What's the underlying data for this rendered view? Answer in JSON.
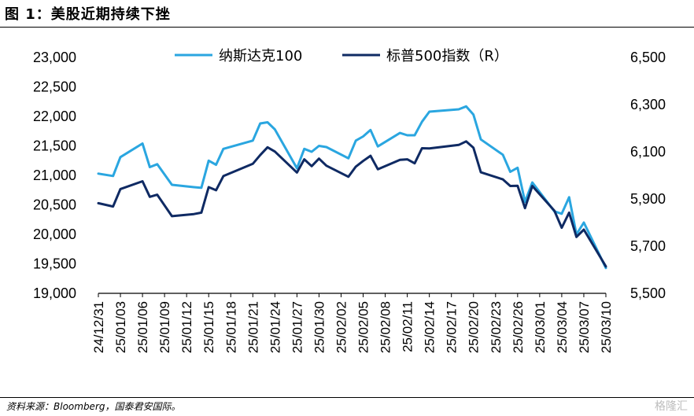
{
  "figure": {
    "title": "图 1：美股近期持续下挫",
    "source": "资料来源：Bloomberg，国泰君安国际。",
    "watermark": "格隆汇"
  },
  "chart_data": {
    "type": "line",
    "x_tick_labels": [
      "24/12/31",
      "25/01/03",
      "25/01/06",
      "25/01/09",
      "25/01/12",
      "25/01/15",
      "25/01/18",
      "25/01/21",
      "25/01/24",
      "25/01/27",
      "25/01/30",
      "25/02/02",
      "25/02/05",
      "25/02/08",
      "25/02/11",
      "25/02/14",
      "25/02/17",
      "25/02/20",
      "25/02/23",
      "25/02/26",
      "25/03/01",
      "25/03/04",
      "25/03/07",
      "25/03/10"
    ],
    "x_range": [
      "2024-12-31",
      "2025-03-10"
    ],
    "y_left": {
      "ticks": [
        "19,000",
        "19,500",
        "20,000",
        "20,500",
        "21,000",
        "21,500",
        "22,000",
        "22,500",
        "23,000"
      ],
      "ylim": [
        19000,
        23000
      ]
    },
    "y_right": {
      "ticks": [
        "5,500",
        "5,700",
        "5,900",
        "6,100",
        "6,300",
        "6,500"
      ],
      "ylim": [
        5500,
        6500
      ],
      "label": "(R)"
    },
    "grid": false,
    "legend_position": "top",
    "series": [
      {
        "name": "纳斯达克100",
        "axis": "left",
        "color": "#2aa6e0",
        "points": [
          [
            "2024-12-31",
            21030
          ],
          [
            "2025-01-02",
            20990
          ],
          [
            "2025-01-03",
            21310
          ],
          [
            "2025-01-06",
            21540
          ],
          [
            "2025-01-07",
            21140
          ],
          [
            "2025-01-08",
            21190
          ],
          [
            "2025-01-10",
            20840
          ],
          [
            "2025-01-13",
            20800
          ],
          [
            "2025-01-14",
            20790
          ],
          [
            "2025-01-15",
            21250
          ],
          [
            "2025-01-16",
            21180
          ],
          [
            "2025-01-17",
            21450
          ],
          [
            "2025-01-21",
            21590
          ],
          [
            "2025-01-22",
            21880
          ],
          [
            "2025-01-23",
            21900
          ],
          [
            "2025-01-24",
            21780
          ],
          [
            "2025-01-27",
            21120
          ],
          [
            "2025-01-28",
            21450
          ],
          [
            "2025-01-29",
            21400
          ],
          [
            "2025-01-30",
            21500
          ],
          [
            "2025-01-31",
            21480
          ],
          [
            "2025-02-03",
            21290
          ],
          [
            "2025-02-04",
            21590
          ],
          [
            "2025-02-05",
            21660
          ],
          [
            "2025-02-06",
            21770
          ],
          [
            "2025-02-07",
            21490
          ],
          [
            "2025-02-10",
            21720
          ],
          [
            "2025-02-11",
            21680
          ],
          [
            "2025-02-12",
            21680
          ],
          [
            "2025-02-13",
            21910
          ],
          [
            "2025-02-14",
            22080
          ],
          [
            "2025-02-18",
            22120
          ],
          [
            "2025-02-19",
            22170
          ],
          [
            "2025-02-20",
            22030
          ],
          [
            "2025-02-21",
            21610
          ],
          [
            "2025-02-24",
            21350
          ],
          [
            "2025-02-25",
            21060
          ],
          [
            "2025-02-26",
            21130
          ],
          [
            "2025-02-27",
            20550
          ],
          [
            "2025-02-28",
            20880
          ],
          [
            "2025-03-03",
            20390
          ],
          [
            "2025-03-04",
            20350
          ],
          [
            "2025-03-05",
            20630
          ],
          [
            "2025-03-06",
            20000
          ],
          [
            "2025-03-07",
            20200
          ],
          [
            "2025-03-10",
            19430
          ]
        ]
      },
      {
        "name": "标普500指数",
        "axis": "right",
        "color": "#0f2a63",
        "points": [
          [
            "2024-12-31",
            5882
          ],
          [
            "2025-01-02",
            5868
          ],
          [
            "2025-01-03",
            5942
          ],
          [
            "2025-01-06",
            5975
          ],
          [
            "2025-01-07",
            5909
          ],
          [
            "2025-01-08",
            5918
          ],
          [
            "2025-01-10",
            5827
          ],
          [
            "2025-01-13",
            5836
          ],
          [
            "2025-01-14",
            5842
          ],
          [
            "2025-01-15",
            5950
          ],
          [
            "2025-01-16",
            5937
          ],
          [
            "2025-01-17",
            5997
          ],
          [
            "2025-01-21",
            6049
          ],
          [
            "2025-01-22",
            6086
          ],
          [
            "2025-01-23",
            6119
          ],
          [
            "2025-01-24",
            6101
          ],
          [
            "2025-01-27",
            6012
          ],
          [
            "2025-01-28",
            6068
          ],
          [
            "2025-01-29",
            6039
          ],
          [
            "2025-01-30",
            6071
          ],
          [
            "2025-01-31",
            6041
          ],
          [
            "2025-02-03",
            5994
          ],
          [
            "2025-02-04",
            6037
          ],
          [
            "2025-02-05",
            6061
          ],
          [
            "2025-02-06",
            6083
          ],
          [
            "2025-02-07",
            6026
          ],
          [
            "2025-02-10",
            6066
          ],
          [
            "2025-02-11",
            6068
          ],
          [
            "2025-02-12",
            6051
          ],
          [
            "2025-02-13",
            6115
          ],
          [
            "2025-02-14",
            6114
          ],
          [
            "2025-02-18",
            6129
          ],
          [
            "2025-02-19",
            6144
          ],
          [
            "2025-02-20",
            6117
          ],
          [
            "2025-02-21",
            6013
          ],
          [
            "2025-02-24",
            5983
          ],
          [
            "2025-02-25",
            5955
          ],
          [
            "2025-02-26",
            5956
          ],
          [
            "2025-02-27",
            5861
          ],
          [
            "2025-02-28",
            5955
          ],
          [
            "2025-03-03",
            5850
          ],
          [
            "2025-03-04",
            5778
          ],
          [
            "2025-03-05",
            5842
          ],
          [
            "2025-03-06",
            5739
          ],
          [
            "2025-03-07",
            5770
          ],
          [
            "2025-03-10",
            5614
          ]
        ]
      }
    ]
  }
}
